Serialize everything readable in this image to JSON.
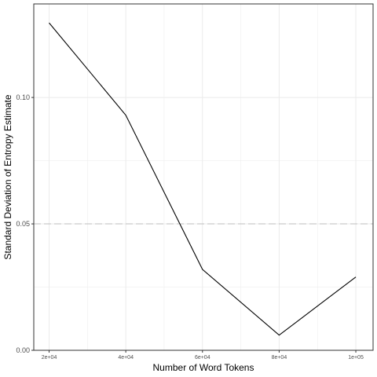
{
  "chart_data": {
    "type": "line",
    "title": "",
    "xlabel": "Number of Word Tokens",
    "ylabel": "Standard Deviation of Entropy Estimate",
    "x": [
      20000,
      40000,
      60000,
      80000,
      100000
    ],
    "x_tick_labels": [
      "2e+04",
      "4e+04",
      "6e+04",
      "8e+04",
      "1e+05"
    ],
    "y_ticks": [
      0.0,
      0.05,
      0.1
    ],
    "y_tick_labels": [
      "0.00",
      "0.05",
      "0.10"
    ],
    "xlim": [
      16000,
      104500
    ],
    "ylim": [
      0.0,
      0.137
    ],
    "series": [
      {
        "values": [
          0.1295,
          0.093,
          0.032,
          0.006,
          0.029
        ]
      }
    ],
    "reference_line": {
      "y": 0.05,
      "style": "dashed"
    },
    "grid": true,
    "colors": {
      "line": "#000000",
      "reference": "#bdbdbd",
      "grid": "#ebebeb",
      "panel_border": "#333333"
    }
  }
}
